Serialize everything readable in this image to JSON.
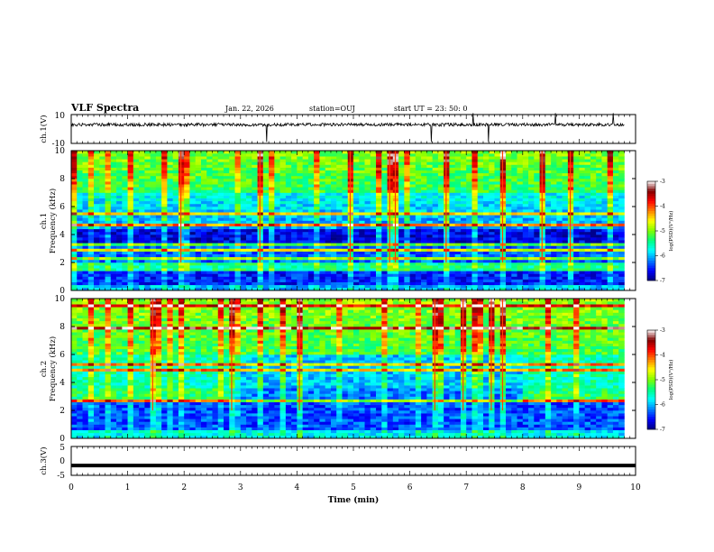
{
  "header": {
    "title": "VLF Spectra",
    "date": "Jan. 22, 2026",
    "station": "station=OUJ",
    "start": "start  UT  =   23: 50: 0"
  },
  "chart_data": [
    {
      "type": "line",
      "name": "ch1-waveform",
      "ylabel": "ch.1(V)",
      "ylim": [
        -10,
        10
      ],
      "yticks": [
        "10",
        "-10"
      ],
      "baseline": 3.0,
      "xlim": [
        0,
        10
      ],
      "data_end_min": 9.8
    },
    {
      "type": "heatmap",
      "name": "ch1-spectrogram",
      "ylabel_top": "ch.1",
      "ylabel": "Frequency  (kHz)",
      "ylim": [
        0,
        10
      ],
      "yticks": [
        "0",
        "2",
        "4",
        "6",
        "8",
        "10"
      ],
      "xlim": [
        0,
        10
      ],
      "data_end_min": 9.8,
      "colorbar": {
        "min": -7,
        "max": -3,
        "ticks": [
          "-3",
          "-4",
          "-5",
          "-6",
          "-7"
        ],
        "label": "log(PSD)(V²/Hz)"
      }
    },
    {
      "type": "heatmap",
      "name": "ch2-spectrogram",
      "ylabel_top": "ch.2",
      "ylabel": "Frequency  (kHz)",
      "ylim": [
        0,
        10
      ],
      "yticks": [
        "0",
        "2",
        "4",
        "6",
        "8",
        "10"
      ],
      "xlim": [
        0,
        10
      ],
      "data_end_min": 9.8,
      "colorbar": {
        "min": -7,
        "max": -3,
        "ticks": [
          "-3",
          "-4",
          "-5",
          "-6",
          "-7"
        ],
        "label": "log(PSD)(V²/Hz)"
      }
    },
    {
      "type": "line",
      "name": "ch3-trace",
      "ylabel": "ch.3(V)",
      "ylim": [
        -5,
        5
      ],
      "yticks": [
        "5",
        "0",
        "-5"
      ],
      "value": -1.6,
      "xlim": [
        0,
        10
      ]
    }
  ],
  "xaxis": {
    "label": "Time  (min)",
    "ticks": [
      "0",
      "1",
      "2",
      "3",
      "4",
      "5",
      "6",
      "7",
      "8",
      "9",
      "10"
    ]
  },
  "colors": {
    "background": "#ffffff",
    "axis": "#000000",
    "colormap": [
      "#00007f",
      "#0000ff",
      "#0080ff",
      "#00ffff",
      "#00ff80",
      "#80ff00",
      "#ffff00",
      "#ff8000",
      "#ff0000",
      "#800000",
      "#ffffff"
    ]
  }
}
